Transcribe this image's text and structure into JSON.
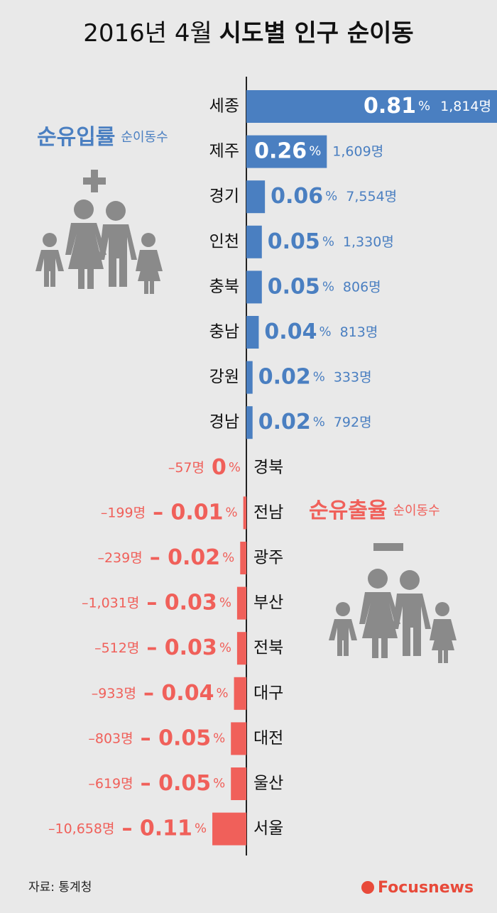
{
  "chart_data": {
    "type": "diverging-bar",
    "title": "2016년  4월",
    "title_emphasis": "시도별 인구 순이동",
    "categories": [
      "세종",
      "제주",
      "경기",
      "인천",
      "충북",
      "충남",
      "강원",
      "경남",
      "경북",
      "전남",
      "광주",
      "부산",
      "전북",
      "대구",
      "대전",
      "울산",
      "서울"
    ],
    "values": [
      0.81,
      0.26,
      0.06,
      0.05,
      0.05,
      0.04,
      0.02,
      0.02,
      0,
      -0.01,
      -0.02,
      -0.03,
      -0.03,
      -0.04,
      -0.05,
      -0.05,
      -0.11
    ],
    "value_labels": [
      "0.81",
      "0.26",
      "0.06",
      "0.05",
      "0.05",
      "0.04",
      "0.02",
      "0.02",
      "0",
      "– 0.01",
      "– 0.02",
      "– 0.03",
      "– 0.03",
      "– 0.04",
      "– 0.05",
      "– 0.05",
      "– 0.11"
    ],
    "unit": "%",
    "counts": [
      1814,
      1609,
      7554,
      1330,
      806,
      813,
      333,
      792,
      -57,
      -199,
      -239,
      -1031,
      -512,
      -933,
      -803,
      -619,
      -10658
    ],
    "count_labels": [
      "1,814명",
      "1,609명",
      "7,554명",
      "1,330명",
      "806명",
      "813명",
      "333명",
      "792명",
      "–57명",
      "–199명",
      "–239명",
      "–1,031명",
      "–512명",
      "–933명",
      "–803명",
      "–619명",
      "–10,658명"
    ],
    "positive_color": "#4a7fc1",
    "negative_color": "#f0605a",
    "legend_inflow": {
      "title": "순유입률",
      "subtitle": "순이동수"
    },
    "legend_outflow": {
      "title": "순유출율",
      "subtitle": "순이동수"
    }
  },
  "source": "자료: 통계청",
  "brand": "Focusnews"
}
